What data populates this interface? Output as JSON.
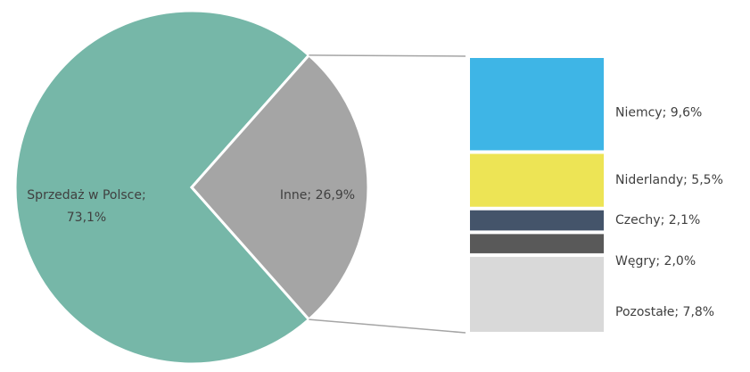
{
  "chart_data": {
    "type": "bar-of-pie",
    "pie": {
      "values": [
        73.1,
        26.9
      ],
      "value_labels": [
        [
          "Sprzedaż w Polsce;",
          "73,1%"
        ],
        [
          "Inne; 26,9%"
        ]
      ],
      "colors": [
        "#76b7a8",
        "#a5a5a5"
      ]
    },
    "bar": {
      "values": [
        9.6,
        5.5,
        2.1,
        2.0,
        7.8
      ],
      "value_labels": [
        [
          "Niemcy; 9,6%"
        ],
        [
          "Niderlandy; 5,5%"
        ],
        [
          "Czechy; 2,1%"
        ],
        [
          "Węgry; 2,0%"
        ],
        [
          "Pozostałe; 7,8%"
        ]
      ],
      "colors": [
        "#3eb5e6",
        "#ede455",
        "#44546a",
        "#595959",
        "#d9d9d9"
      ]
    }
  }
}
